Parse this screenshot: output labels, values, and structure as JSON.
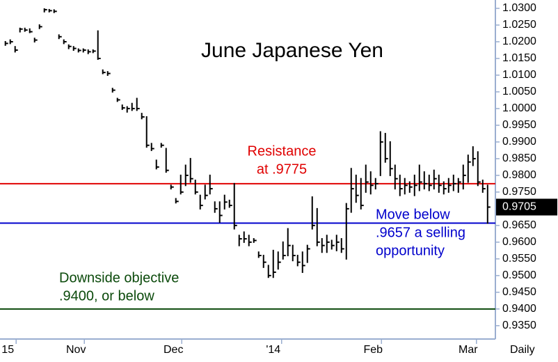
{
  "chart_data": {
    "type": "ohlc",
    "title": "June Japanese Yen",
    "period_label": "Daily",
    "color": "#000000",
    "high": [
      1.02,
      1.0205,
      1.0185,
      1.024,
      1.024,
      1.0238,
      1.021,
      1.025,
      1.0298,
      1.0296,
      1.0295,
      1.022,
      1.0205,
      1.019,
      1.0185,
      1.0178,
      1.0178,
      1.0175,
      1.0175,
      1.0232,
      1.0115,
      1.011,
      1.006,
      1.003,
      1.001,
      1.0005,
      1.0015,
      1.003,
      0.9985,
      0.9975,
      0.9895,
      0.9845,
      0.9895,
      0.988,
      0.977,
      0.973,
      0.98,
      0.983,
      0.985,
      0.9785,
      0.974,
      0.977,
      0.98,
      0.972,
      0.972,
      0.974,
      0.9725,
      0.9775,
      0.962,
      0.963,
      0.962,
      0.961,
      0.957,
      0.956,
      0.953,
      0.9575,
      0.957,
      0.96,
      0.964,
      0.959,
      0.956,
      0.957,
      0.959,
      0.9735,
      0.97,
      0.961,
      0.962,
      0.9605,
      0.962,
      0.961,
      0.9715,
      0.982,
      0.98,
      0.979,
      0.983,
      0.981,
      0.979,
      0.993,
      0.9925,
      0.99,
      0.983,
      0.98,
      0.979,
      0.978,
      0.98,
      0.983,
      0.981,
      0.98,
      0.9815,
      0.98,
      0.978,
      0.979,
      0.98,
      0.979,
      0.983,
      0.986,
      0.9885,
      0.987,
      0.9785,
      0.977
    ],
    "low": [
      1.019,
      1.0195,
      1.017,
      1.023,
      1.0232,
      1.0228,
      1.02,
      1.024,
      1.029,
      1.029,
      1.0288,
      1.021,
      1.0195,
      1.018,
      1.0175,
      1.017,
      1.017,
      1.0165,
      1.0168,
      1.0148,
      1.0105,
      1.01,
      1.005,
      1.0022,
      0.9998,
      0.999,
      0.9995,
      0.9995,
      0.997,
      0.9885,
      0.9875,
      0.982,
      0.9885,
      0.981,
      0.976,
      0.9718,
      0.9745,
      0.977,
      0.978,
      0.9745,
      0.97,
      0.973,
      0.9745,
      0.969,
      0.966,
      0.97,
      0.9705,
      0.964,
      0.959,
      0.96,
      0.959,
      0.96,
      0.9555,
      0.9525,
      0.9495,
      0.9495,
      0.952,
      0.955,
      0.956,
      0.9545,
      0.953,
      0.951,
      0.954,
      0.964,
      0.959,
      0.957,
      0.957,
      0.958,
      0.9575,
      0.957,
      0.955,
      0.969,
      0.972,
      0.97,
      0.975,
      0.9745,
      0.976,
      0.98,
      0.984,
      0.98,
      0.976,
      0.974,
      0.9745,
      0.975,
      0.974,
      0.9755,
      0.976,
      0.9755,
      0.976,
      0.975,
      0.9745,
      0.975,
      0.9755,
      0.975,
      0.976,
      0.978,
      0.983,
      0.977,
      0.975,
      0.9657
    ],
    "close": [
      1.0195,
      1.02,
      1.0175,
      1.0238,
      1.0235,
      1.023,
      1.0205,
      1.0245,
      1.0296,
      1.0293,
      1.0291,
      1.0215,
      1.02,
      1.0186,
      1.018,
      1.0174,
      1.0175,
      1.017,
      1.0172,
      1.015,
      1.0108,
      1.0105,
      1.0055,
      1.0026,
      1.0002,
      1.0,
      1.0,
      1.0,
      0.9975,
      0.989,
      0.988,
      0.9825,
      0.989,
      0.9815,
      0.9765,
      0.9722,
      0.975,
      0.98,
      0.979,
      0.975,
      0.971,
      0.974,
      0.976,
      0.97,
      0.968,
      0.972,
      0.971,
      0.965,
      0.961,
      0.961,
      0.96,
      0.9605,
      0.956,
      0.954,
      0.95,
      0.951,
      0.954,
      0.956,
      0.959,
      0.956,
      0.954,
      0.953,
      0.958,
      0.965,
      0.96,
      0.959,
      0.96,
      0.959,
      0.96,
      0.958,
      0.97,
      0.976,
      0.974,
      0.971,
      0.978,
      0.977,
      0.9775,
      0.99,
      0.985,
      0.982,
      0.979,
      0.976,
      0.977,
      0.9765,
      0.977,
      0.978,
      0.9775,
      0.977,
      0.979,
      0.977,
      0.976,
      0.977,
      0.9775,
      0.978,
      0.98,
      0.984,
      0.985,
      0.978,
      0.976,
      0.9705
    ],
    "xlim": [
      -1.1,
      100.6
    ],
    "xticks": [
      {
        "value": 0.5,
        "label": "15"
      },
      {
        "value": 14.5,
        "label": "Nov"
      },
      {
        "value": 34.5,
        "label": "Dec"
      },
      {
        "value": 55,
        "label": "'14"
      },
      {
        "value": 75.5,
        "label": "Feb"
      },
      {
        "value": 95,
        "label": "Mar"
      }
    ],
    "ylim": [
      0.931,
      1.0325
    ],
    "yticks": [
      {
        "value": 0.935,
        "label": "0.9350"
      },
      {
        "value": 0.94,
        "label": "0.9400"
      },
      {
        "value": 0.945,
        "label": "0.9450"
      },
      {
        "value": 0.95,
        "label": "0.9500"
      },
      {
        "value": 0.955,
        "label": "0.9550"
      },
      {
        "value": 0.96,
        "label": "0.9600"
      },
      {
        "value": 0.965,
        "label": "0.9650"
      },
      {
        "value": 0.97,
        "label": "0.9700"
      },
      {
        "value": 0.975,
        "label": "0.9750"
      },
      {
        "value": 0.98,
        "label": "0.9800"
      },
      {
        "value": 0.985,
        "label": "0.9850"
      },
      {
        "value": 0.99,
        "label": "0.9900"
      },
      {
        "value": 0.995,
        "label": "0.9950"
      },
      {
        "value": 1.0,
        "label": "1.0000"
      },
      {
        "value": 1.005,
        "label": "1.0050"
      },
      {
        "value": 1.01,
        "label": "1.0100"
      },
      {
        "value": 1.015,
        "label": "1.0150"
      },
      {
        "value": 1.02,
        "label": "1.0200"
      },
      {
        "value": 1.025,
        "label": "1.0250"
      },
      {
        "value": 1.03,
        "label": "1.0300"
      }
    ],
    "last_price": {
      "value": 0.9705,
      "label": "0.9705"
    },
    "levels": [
      {
        "value": 0.9775,
        "color": "#e00000",
        "text": [
          "Resistance",
          "at .9775"
        ]
      },
      {
        "value": 0.9657,
        "color": "#0000cc",
        "text": [
          "Move below",
          ".9657 a selling",
          "opportunity"
        ]
      },
      {
        "value": 0.94,
        "color": "#0b4a0b",
        "text": [
          "Downside objective",
          ".9400, or below"
        ]
      }
    ]
  }
}
